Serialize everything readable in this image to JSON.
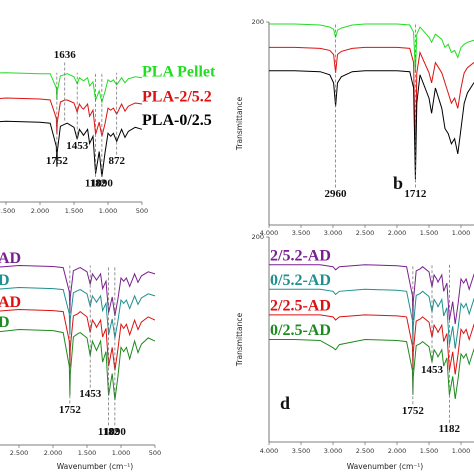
{
  "chart_data": [
    {
      "type": "line",
      "x": [
        4000,
        3600,
        3200,
        3000,
        2960,
        2900,
        2500,
        2000,
        1850,
        1760,
        1752,
        1745,
        1700,
        1636,
        1600,
        1500,
        1453,
        1420,
        1380,
        1360,
        1300,
        1270,
        1220,
        1182,
        1130,
        1090,
        1045,
        1000,
        960,
        920,
        872,
        800,
        750,
        700,
        600,
        500
      ],
      "series": [
        {
          "name": "PLA Pellet",
          "color": "#22dd22",
          "values": [
            128,
            128,
            128,
            127,
            126,
            127,
            128,
            127,
            127,
            113,
            101,
            110,
            125,
            126,
            127,
            124,
            117,
            123,
            121,
            120,
            123,
            115,
            119,
            101,
            110,
            99,
            109,
            121,
            119,
            121,
            116,
            123,
            118,
            122,
            124,
            123
          ]
        },
        {
          "name": "PLA-2/5.2",
          "color": "#dd1111",
          "values": [
            103,
            103,
            103,
            101,
            100,
            101,
            103,
            102,
            101,
            83,
            67,
            79,
            99,
            101,
            101,
            98,
            89,
            97,
            93,
            92,
            97,
            85,
            91,
            67,
            79,
            65,
            77,
            93,
            91,
            93,
            87,
            97,
            90,
            95,
            98,
            97
          ]
        },
        {
          "name": "PLA-0/2.5",
          "color": "#000000",
          "values": [
            80,
            80,
            80,
            78,
            76,
            78,
            80,
            79,
            78,
            55,
            35,
            50,
            75,
            77,
            78,
            74,
            62,
            72,
            68,
            66,
            72,
            58,
            65,
            28,
            50,
            25,
            48,
            68,
            65,
            68,
            60,
            72,
            64,
            70,
            74,
            72
          ]
        }
      ],
      "xlim": [
        4000,
        500
      ],
      "ylim": [
        0,
        200
      ],
      "xticks": [
        {
          "value": 2500,
          "label": "2.500"
        },
        {
          "value": 2000,
          "label": "2.000"
        },
        {
          "value": 1500,
          "label": "1.500"
        },
        {
          "value": 1000,
          "label": "1.000"
        },
        500
      ],
      "annotations": [
        {
          "text": "1636",
          "x": 1636,
          "y": 145
        },
        {
          "text": "1752",
          "x": 1752,
          "y": 40
        },
        {
          "text": "1453",
          "x": 1453,
          "y": 55
        },
        {
          "text": "1182",
          "x": 1182,
          "y": 18
        },
        {
          "text": "1090",
          "x": 1090,
          "y": 18
        },
        {
          "text": "872",
          "x": 872,
          "y": 40
        }
      ]
    },
    {
      "type": "line",
      "x": [
        4000,
        3600,
        3200,
        3050,
        2990,
        2960,
        2930,
        2870,
        2700,
        2500,
        2000,
        1800,
        1740,
        1712,
        1690,
        1640,
        1500,
        1460,
        1400,
        1300,
        1250,
        1200,
        1150,
        1100,
        1050,
        1000,
        950,
        900,
        800,
        700,
        600,
        500
      ],
      "series": [
        {
          "color": "#22dd22",
          "values": [
            198,
            198,
            197,
            195,
            193,
            185,
            192,
            194,
            197,
            198,
            198,
            197,
            190,
            150,
            188,
            195,
            185,
            180,
            188,
            183,
            175,
            178,
            170,
            172,
            165,
            175,
            178,
            180,
            182,
            183,
            185,
            186
          ]
        },
        {
          "color": "#dd1111",
          "values": [
            175,
            175,
            174,
            172,
            168,
            150,
            168,
            171,
            174,
            175,
            175,
            174,
            160,
            60,
            150,
            170,
            150,
            140,
            160,
            150,
            140,
            130,
            120,
            125,
            115,
            135,
            150,
            155,
            160,
            162,
            165,
            166
          ]
        },
        {
          "color": "#000000",
          "values": [
            152,
            152,
            151,
            148,
            140,
            117,
            140,
            146,
            151,
            152,
            152,
            151,
            135,
            45,
            120,
            148,
            125,
            110,
            135,
            115,
            95,
            90,
            80,
            85,
            70,
            95,
            120,
            130,
            140,
            142,
            145,
            146
          ]
        }
      ],
      "xlim": [
        4000,
        500
      ],
      "ylim": [
        0,
        200
      ],
      "yticks": [
        200
      ],
      "ylabel": "Transmittance",
      "xticks": [
        {
          "value": 4000,
          "label": "4.000"
        },
        {
          "value": 3500,
          "label": "3.500"
        },
        {
          "value": 3000,
          "label": "3.000"
        },
        {
          "value": 2500,
          "label": "2.500"
        },
        {
          "value": 2000,
          "label": "2.000"
        },
        {
          "value": 1500,
          "label": "1.500"
        },
        {
          "value": 1000,
          "label": "1.000"
        }
      ],
      "annotations": [
        {
          "text": "2960",
          "x": 2960,
          "y": 30
        },
        {
          "text": "1712",
          "x": 1712,
          "y": 30
        }
      ],
      "panel_label": "b"
    },
    {
      "type": "line",
      "x": [
        4000,
        3600,
        3200,
        3000,
        2960,
        2900,
        2500,
        2000,
        1850,
        1760,
        1752,
        1745,
        1700,
        1636,
        1600,
        1500,
        1453,
        1420,
        1380,
        1360,
        1300,
        1270,
        1220,
        1182,
        1130,
        1090,
        1045,
        1000,
        960,
        920,
        872,
        800,
        750,
        700,
        600,
        500
      ],
      "series": [
        {
          "name": "AD",
          "color": "#7a1f8f",
          "values": [
            171,
            171,
            171,
            169,
            167,
            169,
            171,
            170,
            169,
            146,
            126,
            141,
            166,
            168,
            169,
            165,
            153,
            163,
            159,
            157,
            163,
            149,
            156,
            126,
            141,
            123,
            139,
            159,
            156,
            159,
            151,
            163,
            155,
            161,
            165,
            163
          ]
        },
        {
          "name": "D",
          "color": "#1f8f8f",
          "values": [
            150,
            150,
            150,
            148,
            146,
            148,
            150,
            149,
            148,
            125,
            105,
            120,
            145,
            147,
            148,
            144,
            132,
            142,
            138,
            136,
            142,
            128,
            135,
            105,
            120,
            102,
            118,
            138,
            135,
            138,
            130,
            142,
            134,
            140,
            144,
            142
          ]
        },
        {
          "name": "AD",
          "color": "#dd1111",
          "values": [
            129,
            129,
            129,
            127,
            124,
            127,
            129,
            128,
            127,
            99,
            75,
            93,
            123,
            125,
            127,
            122,
            107,
            119,
            115,
            112,
            119,
            103,
            111,
            75,
            93,
            71,
            91,
            115,
            111,
            115,
            105,
            119,
            110,
            117,
            122,
            119
          ]
        },
        {
          "name": "D",
          "color": "#1f8a1f",
          "values": [
            110,
            110,
            110,
            107,
            104,
            107,
            110,
            109,
            107,
            75,
            47,
            68,
            103,
            106,
            107,
            102,
            85,
            99,
            93,
            90,
            99,
            79,
            89,
            47,
            68,
            43,
            65,
            93,
            89,
            93,
            82,
            99,
            88,
            96,
            102,
            99
          ]
        }
      ],
      "xlim": [
        4000,
        500
      ],
      "ylim": [
        0,
        200
      ],
      "xlabel": "Wavenumber (cm⁻¹)",
      "xticks": [
        {
          "value": 2500,
          "label": "2.500"
        },
        {
          "value": 2000,
          "label": "2.000"
        },
        {
          "value": 1500,
          "label": "1.500"
        },
        {
          "value": 1000,
          "label": "1.000"
        },
        500
      ],
      "annotations": [
        {
          "text": "1752",
          "x": 1752,
          "y": 33
        },
        {
          "text": "1453",
          "x": 1453,
          "y": 48
        },
        {
          "text": "1182",
          "x": 1182,
          "y": 12
        },
        {
          "text": "1090",
          "x": 1090,
          "y": 12
        }
      ]
    },
    {
      "type": "line",
      "x": [
        4000,
        3600,
        3200,
        3000,
        2960,
        2900,
        2500,
        2000,
        1850,
        1760,
        1752,
        1745,
        1700,
        1636,
        1600,
        1500,
        1453,
        1420,
        1380,
        1360,
        1300,
        1270,
        1220,
        1182,
        1130,
        1090,
        1045,
        1000,
        960,
        920,
        872,
        800,
        750,
        700,
        600,
        500
      ],
      "series": [
        {
          "name": "2/5.2-AD",
          "color": "#7a1f8f",
          "values": [
            173,
            173,
            173,
            171,
            168,
            171,
            173,
            172,
            171,
            143,
            119,
            137,
            167,
            169,
            171,
            166,
            151,
            163,
            159,
            156,
            163,
            147,
            155,
            119,
            137,
            115,
            135,
            159,
            155,
            159,
            149,
            163,
            154,
            161,
            166,
            163
          ]
        },
        {
          "name": "0/5.2-AD",
          "color": "#1f8f8f",
          "values": [
            149,
            149,
            149,
            147,
            144,
            147,
            149,
            148,
            147,
            119,
            95,
            113,
            143,
            145,
            147,
            142,
            127,
            139,
            135,
            132,
            139,
            123,
            131,
            95,
            113,
            91,
            111,
            135,
            131,
            135,
            125,
            139,
            130,
            137,
            142,
            139
          ]
        },
        {
          "name": "2/2.5-AD",
          "color": "#dd1111",
          "values": [
            124,
            124,
            124,
            122,
            119,
            122,
            124,
            123,
            122,
            94,
            70,
            88,
            118,
            120,
            122,
            117,
            102,
            114,
            110,
            107,
            114,
            98,
            106,
            70,
            88,
            66,
            86,
            110,
            106,
            110,
            100,
            114,
            105,
            112,
            117,
            114
          ]
        },
        {
          "name": "0/2.5-AD",
          "color": "#1f8a1f",
          "values": [
            100,
            100,
            99,
            92,
            90,
            95,
            100,
            99,
            98,
            70,
            46,
            64,
            94,
            96,
            98,
            93,
            78,
            90,
            86,
            83,
            90,
            74,
            82,
            46,
            64,
            42,
            62,
            86,
            82,
            86,
            76,
            90,
            81,
            88,
            93,
            90
          ]
        }
      ],
      "xlim": [
        4000,
        500
      ],
      "ylim": [
        0,
        200
      ],
      "yticks": [
        200
      ],
      "ylabel": "Transmittance",
      "xlabel": "Wavenumber (cm⁻¹)",
      "xticks": [
        {
          "value": 4000,
          "label": "4.000"
        },
        {
          "value": 3500,
          "label": "3.500"
        },
        {
          "value": 3000,
          "label": "3.000"
        },
        {
          "value": 2500,
          "label": "2.500"
        },
        {
          "value": 2000,
          "label": "2.000"
        },
        {
          "value": 1500,
          "label": "1.500"
        },
        {
          "value": 1000,
          "label": "1.000"
        }
      ],
      "annotations": [
        {
          "text": "1752",
          "x": 1752,
          "y": 30
        },
        {
          "text": "1453",
          "x": 1453,
          "y": 70
        },
        {
          "text": "1182",
          "x": 1182,
          "y": 12
        }
      ],
      "panel_label": "d"
    }
  ]
}
